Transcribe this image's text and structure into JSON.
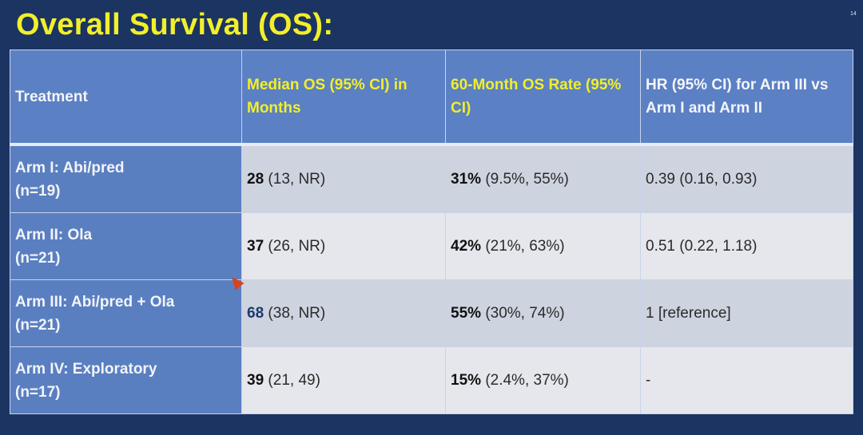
{
  "slide": {
    "title": "Overall Survival (OS):",
    "page_number": "14"
  },
  "table": {
    "headers": [
      "Treatment",
      "Median OS (95% CI) in Months",
      "60-Month OS Rate (95% CI)",
      "HR (95% CI) for Arm III vs Arm I and Arm II"
    ],
    "rows": [
      {
        "arm": "Arm I: Abi/pred",
        "n": "(n=19)",
        "median": "28",
        "median_ci": "(13, NR)",
        "rate": "31%",
        "rate_ci": "(9.5%, 55%)",
        "hr": "0.39 (0.16, 0.93)"
      },
      {
        "arm": "Arm II: Ola",
        "n": "(n=21)",
        "median": "37",
        "median_ci": "(26, NR)",
        "rate": "42%",
        "rate_ci": "(21%, 63%)",
        "hr": "0.51 (0.22, 1.18)"
      },
      {
        "arm": "Arm III: Abi/pred + Ola",
        "n": "(n=21)",
        "median": "68",
        "median_ci": "(38, NR)",
        "rate": "55%",
        "rate_ci": "(30%, 74%)",
        "hr": "1 [reference]"
      },
      {
        "arm": "Arm IV: Exploratory",
        "n": "(n=17)",
        "median": "39",
        "median_ci": "(21, 49)",
        "rate": "15%",
        "rate_ci": "(2.4%, 37%)",
        "hr": "-"
      }
    ]
  },
  "colors": {
    "background": "#1b3462",
    "title": "#f2ef2a",
    "header": "#5b80c4"
  }
}
